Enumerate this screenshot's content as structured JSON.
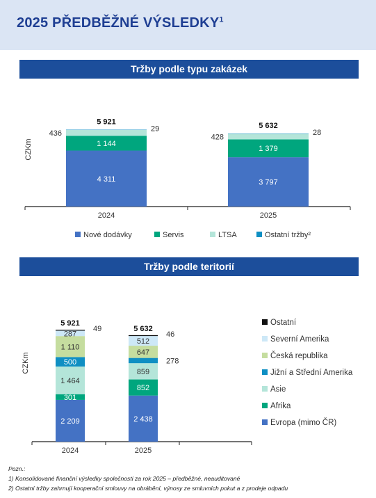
{
  "page": {
    "title": "2025 PŘEDBĚŽNÉ VÝSLEDKY",
    "title_sup": "1",
    "notes": [
      "Pozn.:",
      "1) Konsolidované finanční výsledky společnosti za rok 2025 – předběžné, neauditované",
      "2) Ostatní tržby zahrnují kooperační smlouvy na obrábění, výnosy ze smluvních pokut a z prodeje odpadu"
    ]
  },
  "colors": {
    "header_bg": "#dbe5f4",
    "title": "#1f3f93",
    "section_bar": "#1c4e9b"
  },
  "chart_data": [
    {
      "type": "bar",
      "stacked": true,
      "title": "Tržby podle typu zakázek",
      "ylabel": "CZKm",
      "categories": [
        "2024",
        "2025"
      ],
      "totals": [
        "5 921",
        "5 632"
      ],
      "series": [
        {
          "name": "Nové dodávky",
          "color": "#4472c4",
          "values": [
            4311,
            3797
          ],
          "labels": [
            "4 311",
            "3 797"
          ]
        },
        {
          "name": "Servis",
          "color": "#00a67e",
          "values": [
            1144,
            1379
          ],
          "labels": [
            "1 144",
            "1 379"
          ]
        },
        {
          "name": "LTSA",
          "color": "#b4e5d9",
          "values": [
            436,
            428
          ],
          "labels": [
            "436",
            "428"
          ]
        },
        {
          "name": "Ostatní tržby²",
          "color": "#0f8fc3",
          "values": [
            29,
            28
          ],
          "labels": [
            "29",
            "28"
          ]
        }
      ],
      "legend": "bottom"
    },
    {
      "type": "bar",
      "stacked": true,
      "title": "Tržby podle teritorií",
      "ylabel": "CZKm",
      "categories": [
        "2024",
        "2025"
      ],
      "totals": [
        "5 921",
        "5 632"
      ],
      "series": [
        {
          "name": "Evropa (mimo ČR)",
          "color": "#4472c4",
          "values": [
            2209,
            2438
          ],
          "labels": [
            "2 209",
            "2 438"
          ]
        },
        {
          "name": "Afrika",
          "color": "#00a67e",
          "values": [
            301,
            852
          ],
          "labels": [
            "301",
            "852"
          ]
        },
        {
          "name": "Asie",
          "color": "#b4e5d9",
          "values": [
            1464,
            859
          ],
          "labels": [
            "1 464",
            "859"
          ]
        },
        {
          "name": "Jižní a Střední Amerika",
          "color": "#0f8fc3",
          "values": [
            500,
            278
          ],
          "labels": [
            "500",
            "278"
          ]
        },
        {
          "name": "Česká republika",
          "color": "#c5dd9f",
          "values": [
            1110,
            647
          ],
          "labels": [
            "1 110",
            "647"
          ]
        },
        {
          "name": "Severní Amerika",
          "color": "#cde8f7",
          "values": [
            287,
            512
          ],
          "labels": [
            "287",
            "512"
          ]
        },
        {
          "name": "Ostatní",
          "color": "#111111",
          "values": [
            49,
            46
          ],
          "labels": [
            "49",
            "46"
          ]
        }
      ],
      "legend": "right"
    }
  ]
}
